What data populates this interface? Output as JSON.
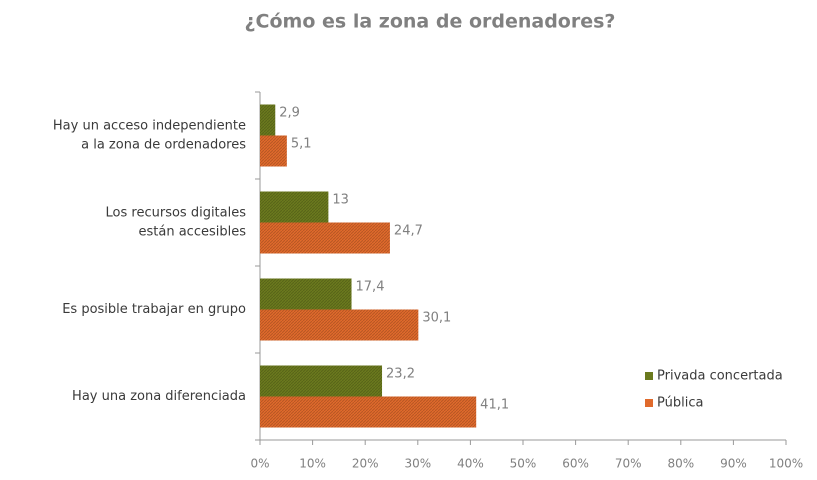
{
  "chart_data": {
    "type": "hbar",
    "title": "¿Cómo es la zona de ordenadores?",
    "categories": [
      [
        "Hay un acceso independiente",
        "a la zona de ordenadores"
      ],
      [
        "Los recursos digitales",
        "están accesibles"
      ],
      [
        "Es posible trabajar en grupo"
      ],
      [
        "Hay una zona diferenciada"
      ]
    ],
    "series": [
      {
        "name": "Privada concertada",
        "color": "#6b7a1e",
        "values": [
          2.9,
          13,
          17.4,
          23.2
        ],
        "value_labels": [
          "2,9",
          "13",
          "17,4",
          "23,2"
        ]
      },
      {
        "name": "Pública",
        "color": "#e06a2c",
        "values": [
          5.1,
          24.7,
          30.1,
          41.1
        ],
        "value_labels": [
          "5,1",
          "24,7",
          "30,1",
          "41,1"
        ]
      }
    ],
    "xlim": [
      0,
      100
    ],
    "xticks": [
      {
        "value": 0,
        "label": "0%"
      },
      {
        "value": 10,
        "label": "10%"
      },
      {
        "value": 20,
        "label": "20%"
      },
      {
        "value": 30,
        "label": "30%"
      },
      {
        "value": 40,
        "label": "40%"
      },
      {
        "value": 50,
        "label": "50%"
      },
      {
        "value": 60,
        "label": "60%"
      },
      {
        "value": 70,
        "label": "70%"
      },
      {
        "value": 80,
        "label": "80%"
      },
      {
        "value": 90,
        "label": "90%"
      },
      {
        "value": 100,
        "label": "100%"
      }
    ],
    "legend": "right",
    "grid": false
  }
}
